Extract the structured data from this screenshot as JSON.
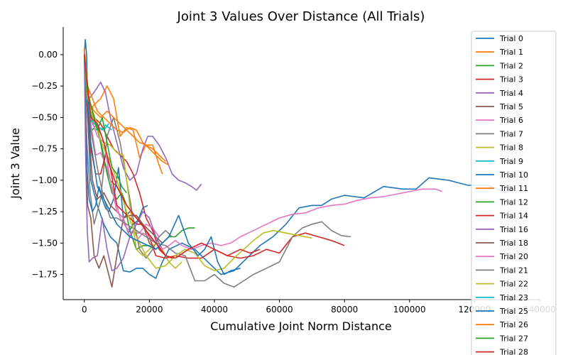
{
  "chart_data": {
    "type": "line",
    "title": "Joint 3 Values Over Distance (All Trials)",
    "xlabel": "Cumulative Joint Norm Distance",
    "ylabel": "Joint 3 Value",
    "xlim": [
      -6500,
      140000
    ],
    "ylim": [
      -1.95,
      0.22
    ],
    "xticks": [
      0,
      20000,
      40000,
      60000,
      80000,
      100000,
      120000,
      140000
    ],
    "xtick_labels": [
      "0",
      "20000",
      "40000",
      "60000",
      "80000",
      "100000",
      "120000",
      "140000"
    ],
    "yticks": [
      0.0,
      -0.25,
      -0.5,
      -0.75,
      -1.0,
      -1.25,
      -1.5,
      -1.75
    ],
    "ytick_labels": [
      "0.00",
      "−0.25",
      "−0.50",
      "−0.75",
      "−1.00",
      "−1.25",
      "−1.50",
      "−1.75"
    ],
    "grid": false,
    "legend_position": "top-right",
    "series": [
      {
        "name": "Trial 0",
        "color": "#1f77b4",
        "x": [
          0,
          300,
          700,
          1200,
          2000,
          4000,
          6000,
          8000,
          10000,
          12000,
          14000,
          16000,
          18000,
          20000,
          22000,
          24000,
          26000,
          30000,
          34000,
          38000,
          42000,
          46000,
          50000,
          54000,
          58000,
          62000,
          66000,
          70000,
          73000,
          76000,
          80000,
          86000,
          92000,
          98000,
          102000,
          106000,
          112000,
          118000,
          124000,
          130000
        ],
        "y": [
          0.0,
          0.12,
          0.0,
          -0.6,
          -1.0,
          -1.2,
          -1.35,
          -1.45,
          -1.5,
          -1.72,
          -1.73,
          -1.7,
          -1.7,
          -1.75,
          -1.78,
          -1.65,
          -1.55,
          -1.5,
          -1.55,
          -1.65,
          -1.75,
          -1.72,
          -1.62,
          -1.52,
          -1.45,
          -1.35,
          -1.22,
          -1.2,
          -1.2,
          -1.15,
          -1.12,
          -1.14,
          -1.05,
          -1.07,
          -1.07,
          -0.98,
          -1.0,
          -1.04,
          -1.04,
          -1.1
        ]
      },
      {
        "name": "Trial 1",
        "color": "#ff7f0e",
        "x": [
          0,
          500,
          1500,
          3000,
          5000,
          7000,
          9000,
          11000,
          13000,
          15000,
          17000,
          19000,
          21000,
          23000,
          24000
        ],
        "y": [
          0.05,
          -0.1,
          -0.45,
          -0.4,
          -0.35,
          -0.25,
          -0.35,
          -0.65,
          -0.58,
          -0.6,
          -0.82,
          -0.72,
          -0.72,
          -0.88,
          -0.95
        ]
      },
      {
        "name": "Trial 2",
        "color": "#2ca02c",
        "x": [
          0,
          600,
          1500,
          2500,
          4000,
          6000,
          8000,
          10000,
          12000,
          14000,
          16000,
          18000,
          20000,
          22000,
          24000,
          26000,
          28000,
          30000,
          32000,
          34000
        ],
        "y": [
          0.0,
          -0.2,
          -0.55,
          -0.6,
          -0.55,
          -0.85,
          -1.0,
          -1.05,
          -1.15,
          -1.4,
          -1.55,
          -1.52,
          -1.52,
          -1.55,
          -1.5,
          -1.45,
          -1.45,
          -1.4,
          -1.38,
          -1.38
        ]
      },
      {
        "name": "Trial 3",
        "color": "#d62728",
        "x": [
          0,
          600,
          1500,
          3000,
          5000,
          7000,
          9000,
          11000,
          13000,
          15000,
          17000,
          19000,
          21000,
          23000,
          25000,
          27000
        ],
        "y": [
          0.0,
          -0.35,
          -0.5,
          -0.5,
          -0.55,
          -0.65,
          -0.75,
          -0.8,
          -0.85,
          -0.95,
          -1.1,
          -1.3,
          -1.4,
          -1.55,
          -1.6,
          -1.62
        ]
      },
      {
        "name": "Trial 4",
        "color": "#9467bd",
        "x": [
          0,
          500,
          1500,
          3000,
          5000,
          6500,
          8000,
          10000,
          12000,
          14000,
          16000,
          18000,
          19500,
          21000,
          23000,
          25000,
          27000,
          29000,
          31000,
          33000,
          34500,
          36000
        ],
        "y": [
          0.0,
          -0.2,
          -0.35,
          -0.3,
          -0.22,
          -0.3,
          -0.5,
          -0.7,
          -0.9,
          -1.0,
          -0.95,
          -0.75,
          -0.65,
          -0.65,
          -0.72,
          -0.82,
          -0.95,
          -1.0,
          -1.02,
          -1.05,
          -1.08,
          -1.03
        ]
      },
      {
        "name": "Trial 5",
        "color": "#8c564b",
        "x": [
          0,
          400,
          1000,
          2000,
          3000,
          4500,
          6000,
          7500,
          8500,
          10000,
          12000,
          14000,
          16000,
          18000,
          20000,
          22000,
          24000
        ],
        "y": [
          0.0,
          -0.6,
          -1.2,
          -1.3,
          -1.6,
          -1.7,
          -1.6,
          -1.75,
          -1.85,
          -1.6,
          -1.3,
          -1.25,
          -1.3,
          -1.35,
          -1.4,
          -1.45,
          -1.5
        ]
      },
      {
        "name": "Trial 6",
        "color": "#e377c2",
        "x": [
          0,
          800,
          2000,
          3500,
          5000,
          7000,
          9000,
          11000,
          13000,
          15000,
          17000,
          19000,
          21000,
          23000
        ],
        "y": [
          0.0,
          -0.4,
          -0.55,
          -0.8,
          -0.78,
          -0.9,
          -1.1,
          -1.3,
          -1.38,
          -1.42,
          -1.42,
          -1.35,
          -1.38,
          -1.45
        ]
      },
      {
        "name": "Trial 7",
        "color": "#7f7f7f",
        "x": [
          0,
          800,
          1800,
          3000,
          5000,
          7000,
          9000,
          11000,
          13000,
          15000,
          17000,
          19000,
          21000,
          23000,
          25000,
          27000
        ],
        "y": [
          0.0,
          -0.7,
          -1.1,
          -1.35,
          -1.15,
          -0.65,
          -0.5,
          -0.7,
          -1.0,
          -1.3,
          -1.55,
          -1.62,
          -1.55,
          -1.45,
          -1.4,
          -1.45
        ]
      },
      {
        "name": "Trial 8",
        "color": "#bcbd22",
        "x": [
          0,
          1000,
          2500,
          4000,
          6000,
          8000,
          10000,
          12000,
          14000,
          16000,
          18000,
          20000,
          22000,
          24000,
          26000,
          28000,
          30000
        ],
        "y": [
          0.0,
          -0.3,
          -0.45,
          -0.55,
          -0.7,
          -0.72,
          -0.78,
          -0.8,
          -1.2,
          -1.55,
          -1.6,
          -1.55,
          -1.5,
          -1.55,
          -1.65,
          -1.7,
          -1.65
        ]
      },
      {
        "name": "Trial 9",
        "color": "#17becf",
        "x": [
          0,
          600,
          1500,
          2500,
          3500,
          4500,
          5500,
          6500,
          7500,
          8500
        ],
        "y": [
          0.0,
          -0.25,
          -0.45,
          -0.55,
          -0.6,
          -0.58,
          -0.6,
          -0.56,
          -0.58,
          -0.6
        ]
      },
      {
        "name": "Trial 10",
        "color": "#1f77b4",
        "x": [
          0,
          400,
          900,
          1500,
          2500,
          3500,
          4500,
          5500,
          6500,
          7500,
          9000,
          10500,
          12000,
          13500,
          15000,
          16500,
          18000,
          19500
        ],
        "y": [
          0.0,
          -0.55,
          -0.95,
          -1.15,
          -1.25,
          -1.2,
          -1.05,
          -1.15,
          -1.22,
          -1.25,
          -1.15,
          -0.9,
          -1.3,
          -1.42,
          -1.35,
          -1.32,
          -1.22,
          -1.2
        ]
      },
      {
        "name": "Trial 11",
        "color": "#ff7f0e",
        "x": [
          0,
          1000,
          2500,
          4000,
          6000,
          8000,
          10000,
          12000,
          14000,
          16000,
          18000,
          20000,
          22000,
          24000,
          26000
        ],
        "y": [
          0.05,
          -0.25,
          -0.35,
          -0.45,
          -0.5,
          -0.55,
          -0.6,
          -0.62,
          -0.58,
          -0.6,
          -0.7,
          -0.75,
          -0.8,
          -0.85,
          -0.88
        ]
      },
      {
        "name": "Trial 12",
        "color": "#2ca02c",
        "x": [
          0,
          500,
          1500,
          2500,
          4000,
          5500,
          7000,
          8500,
          10000,
          11500,
          13000,
          14500,
          16000,
          17500
        ],
        "y": [
          0.0,
          -0.3,
          -0.6,
          -0.45,
          -0.6,
          -0.75,
          -0.95,
          -1.1,
          -1.15,
          -1.1,
          -1.2,
          -1.25,
          -1.3,
          -1.35
        ]
      },
      {
        "name": "Trial 14",
        "color": "#d62728",
        "x": [
          0,
          1000,
          2000,
          3500,
          5000,
          6500,
          8000,
          10000,
          12000,
          14000,
          16000,
          18000,
          20000,
          22000,
          25000,
          28000,
          32000,
          36000,
          40000,
          44000,
          48000,
          52000,
          56000,
          60000,
          64000,
          68000,
          72000,
          76000,
          80000
        ],
        "y": [
          0.0,
          -0.4,
          -0.75,
          -0.95,
          -0.95,
          -0.8,
          -0.9,
          -1.2,
          -1.25,
          -1.3,
          -1.35,
          -1.35,
          -1.45,
          -1.6,
          -1.62,
          -1.6,
          -1.62,
          -1.62,
          -1.55,
          -1.6,
          -1.62,
          -1.6,
          -1.55,
          -1.58,
          -1.45,
          -1.42,
          -1.45,
          -1.48,
          -1.52
        ]
      },
      {
        "name": "Trial 16",
        "color": "#9467bd",
        "x": [
          0,
          400,
          900,
          1500,
          2500,
          4000,
          5500,
          7000,
          8500,
          10000,
          12000,
          14000,
          16000,
          18000,
          20000,
          22000,
          24000
        ],
        "y": [
          0.0,
          -0.8,
          -1.4,
          -1.65,
          -1.62,
          -1.6,
          -1.3,
          -1.55,
          -1.72,
          -1.7,
          -1.62,
          -1.45,
          -1.35,
          -1.25,
          -1.3,
          -1.45,
          -1.55
        ]
      },
      {
        "name": "Trial 18",
        "color": "#8c564b",
        "x": [
          0,
          1000,
          2500,
          4000,
          6000,
          8000,
          10000,
          12000,
          14000,
          16000,
          18000,
          20000,
          22000
        ],
        "y": [
          0.0,
          -0.5,
          -1.0,
          -1.15,
          -1.1,
          -1.2,
          -1.25,
          -1.3,
          -1.28,
          -1.28,
          -1.35,
          -1.5,
          -1.55
        ]
      },
      {
        "name": "Trial 20",
        "color": "#e377c2",
        "x": [
          0,
          2000,
          4000,
          6000,
          8000,
          10000,
          12000,
          14000,
          16000,
          18000,
          20000,
          22000,
          24000,
          26000,
          28000,
          30000,
          33000,
          36000,
          39000,
          42000,
          45000,
          48000,
          52000,
          56000,
          60000,
          64000,
          68000,
          72000,
          76000,
          80000,
          84000,
          88000,
          92000,
          96000,
          100000,
          104000,
          108000,
          110000
        ],
        "y": [
          0.0,
          -0.5,
          -0.65,
          -0.7,
          -1.0,
          -1.25,
          -1.3,
          -1.45,
          -1.48,
          -1.42,
          -1.45,
          -1.5,
          -1.55,
          -1.52,
          -1.48,
          -1.52,
          -1.55,
          -1.52,
          -1.5,
          -1.52,
          -1.5,
          -1.45,
          -1.4,
          -1.35,
          -1.3,
          -1.27,
          -1.26,
          -1.22,
          -1.2,
          -1.19,
          -1.16,
          -1.14,
          -1.13,
          -1.11,
          -1.09,
          -1.07,
          -1.07,
          -1.09
        ]
      },
      {
        "name": "Trial 21",
        "color": "#7f7f7f",
        "x": [
          0,
          2000,
          4000,
          6000,
          8000,
          10000,
          13000,
          16000,
          19000,
          22000,
          25000,
          28000,
          31000,
          34000,
          37000,
          40000,
          43000,
          46000,
          49000,
          52000,
          56000,
          60000,
          64000,
          67000,
          70000,
          73000,
          76000,
          79000,
          82000
        ],
        "y": [
          0.0,
          -0.6,
          -0.9,
          -1.15,
          -1.3,
          -1.3,
          -1.35,
          -1.4,
          -1.45,
          -1.5,
          -1.52,
          -1.58,
          -1.6,
          -1.8,
          -1.8,
          -1.75,
          -1.82,
          -1.85,
          -1.8,
          -1.75,
          -1.7,
          -1.65,
          -1.45,
          -1.38,
          -1.35,
          -1.33,
          -1.4,
          -1.44,
          -1.45
        ]
      },
      {
        "name": "Trial 22",
        "color": "#bcbd22",
        "x": [
          0,
          2000,
          4000,
          6000,
          8000,
          10000,
          13000,
          16000,
          19000,
          22000,
          25000,
          28000,
          31000,
          34000,
          37000,
          40000,
          43000,
          46000,
          49000,
          52000,
          55000,
          58000,
          62000,
          66000,
          70000
        ],
        "y": [
          0.0,
          -0.45,
          -0.6,
          -0.75,
          -0.85,
          -1.0,
          -1.25,
          -1.45,
          -1.6,
          -1.7,
          -1.68,
          -1.6,
          -1.55,
          -1.58,
          -1.68,
          -1.72,
          -1.7,
          -1.62,
          -1.55,
          -1.48,
          -1.42,
          -1.4,
          -1.42,
          -1.44,
          -1.46
        ]
      },
      {
        "name": "Trial 23",
        "color": "#17becf",
        "x": [
          0,
          800,
          1800,
          3000,
          4500,
          6000,
          7500
        ],
        "y": [
          0.0,
          -0.35,
          -0.48,
          -0.55,
          -0.58,
          -0.6,
          -0.55
        ]
      },
      {
        "name": "Trial 25",
        "color": "#1f77b4",
        "x": [
          0,
          2000,
          4000,
          7000,
          10000,
          14000,
          18000,
          22000,
          26000,
          29000,
          32000,
          35000,
          37000,
          39000,
          41000,
          43000,
          45000,
          48000
        ],
        "y": [
          0.0,
          -0.7,
          -1.05,
          -1.2,
          -1.35,
          -1.45,
          -1.5,
          -1.55,
          -1.45,
          -1.28,
          -1.5,
          -1.6,
          -1.55,
          -1.45,
          -1.65,
          -1.75,
          -1.72,
          -1.7
        ]
      },
      {
        "name": "Trial 26",
        "color": "#ff7f0e",
        "x": [
          0,
          1000,
          3000,
          5000,
          7000,
          9000,
          11000,
          13000,
          15000,
          17000,
          19000,
          21000,
          23000,
          25000
        ],
        "y": [
          0.0,
          -0.35,
          -0.45,
          -0.5,
          -0.45,
          -0.5,
          -0.55,
          -0.6,
          -0.65,
          -0.7,
          -0.72,
          -0.75,
          -0.8,
          -0.85
        ]
      },
      {
        "name": "Trial 27",
        "color": "#2ca02c",
        "x": [
          0,
          1000,
          2500,
          4000,
          5500,
          7000,
          8500,
          10000,
          11500,
          13000
        ],
        "y": [
          0.0,
          -0.3,
          -0.45,
          -0.6,
          -0.5,
          -0.7,
          -0.9,
          -0.95,
          -1.05,
          -1.1
        ]
      },
      {
        "name": "Trial 28",
        "color": "#d62728",
        "x": [
          0,
          2000,
          4000,
          6000,
          8000,
          10000,
          13000,
          16000,
          19000,
          22000,
          25000,
          28000,
          32000,
          36000,
          40000,
          44000,
          48000,
          51000,
          54000
        ],
        "y": [
          0.0,
          -0.5,
          -0.55,
          -0.7,
          -0.9,
          -1.05,
          -1.2,
          -1.3,
          -1.4,
          -1.5,
          -1.6,
          -1.62,
          -1.55,
          -1.5,
          -1.55,
          -1.6,
          -1.55,
          -1.58,
          -1.55
        ]
      }
    ]
  }
}
